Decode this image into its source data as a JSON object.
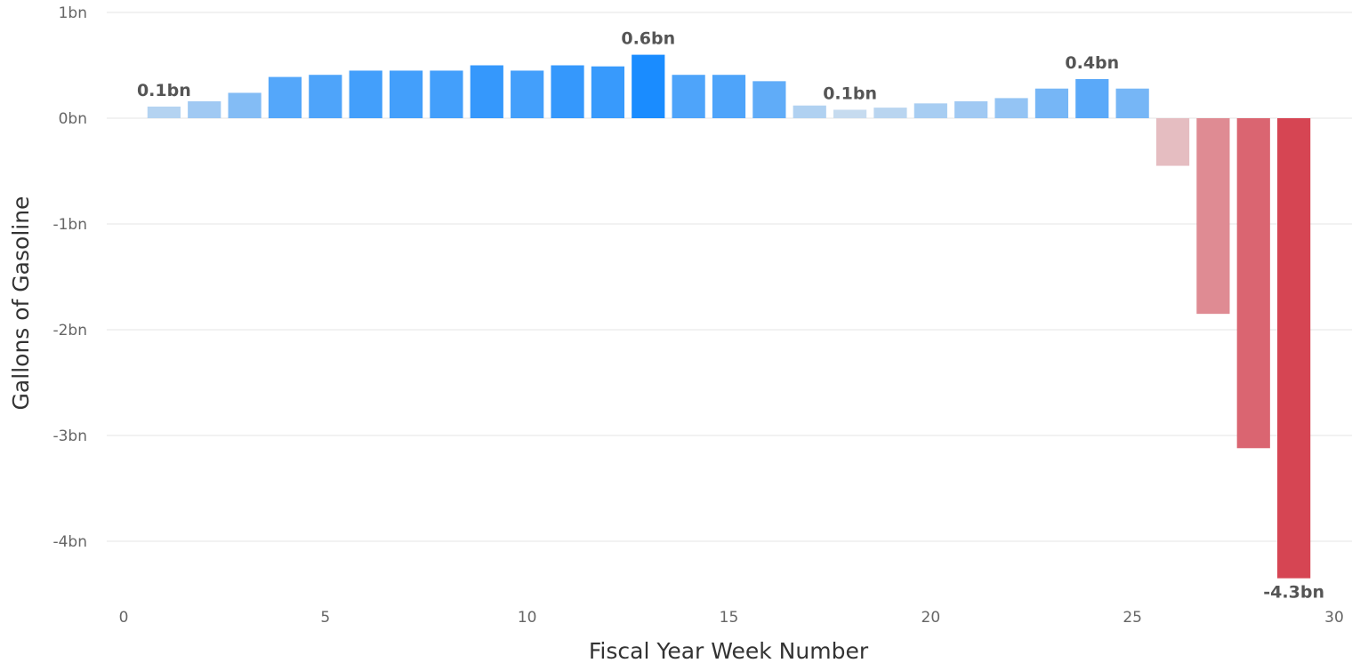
{
  "chart_data": {
    "type": "bar",
    "xlabel": "Fiscal Year Week Number",
    "ylabel": "Gallons of Gasoline",
    "xlim": [
      0,
      30
    ],
    "ylim": [
      -4.5,
      1
    ],
    "x_ticks": [
      0,
      5,
      10,
      15,
      20,
      25,
      30
    ],
    "y_ticks": [
      1,
      0,
      -1,
      -2,
      -3,
      -4
    ],
    "y_tick_labels": [
      "1bn",
      "0bn",
      "-1bn",
      "-2bn",
      "-3bn",
      "-4bn"
    ],
    "grid": true,
    "legend": "none",
    "unit": "bn",
    "x": [
      1,
      2,
      3,
      4,
      5,
      6,
      7,
      8,
      9,
      10,
      11,
      12,
      13,
      14,
      15,
      16,
      17,
      18,
      19,
      20,
      21,
      22,
      23,
      24,
      25,
      26,
      27,
      28,
      29
    ],
    "values": [
      0.11,
      0.16,
      0.24,
      0.39,
      0.41,
      0.45,
      0.45,
      0.45,
      0.5,
      0.45,
      0.5,
      0.49,
      0.6,
      0.41,
      0.41,
      0.35,
      0.12,
      0.08,
      0.1,
      0.14,
      0.16,
      0.19,
      0.28,
      0.37,
      0.28,
      -0.45,
      -1.85,
      -3.12,
      -4.35
    ],
    "annotations": [
      {
        "x": 1,
        "value": 0.11,
        "label": "0.1bn"
      },
      {
        "x": 13,
        "value": 0.6,
        "label": "0.6bn"
      },
      {
        "x": 18,
        "value": 0.08,
        "label": "0.1bn"
      },
      {
        "x": 24,
        "value": 0.37,
        "label": "0.4bn"
      },
      {
        "x": 29,
        "value": -4.35,
        "label": "-4.3bn"
      }
    ],
    "colors": {
      "positive_light": "#c6dbef",
      "positive_dark": "#1a8cff",
      "negative_light": "#e8d8da",
      "negative_dark": "#d64553",
      "grid": "#eeeeee"
    }
  }
}
